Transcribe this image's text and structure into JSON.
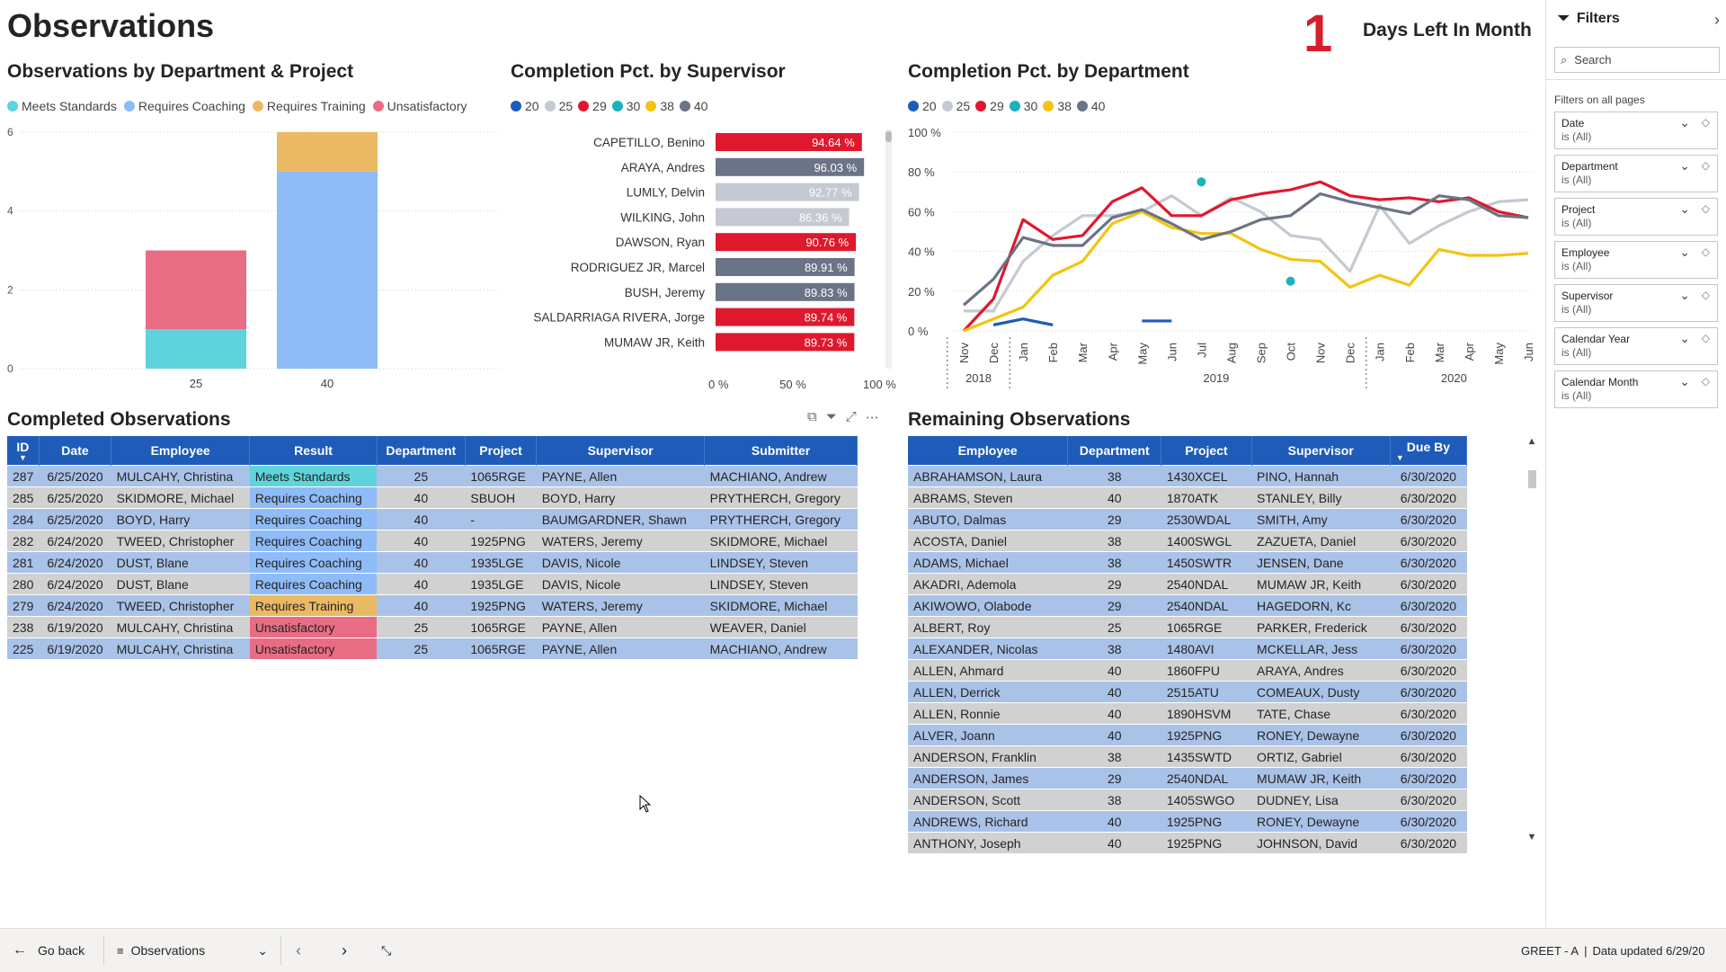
{
  "page_title": "Observations",
  "days_left": {
    "number": "1",
    "label": "Days Left In Month"
  },
  "obs_chart": {
    "title": "Observations by Department & Project",
    "legend": [
      {
        "label": "Meets Standards",
        "color": "#5fd3dc"
      },
      {
        "label": "Requires Coaching",
        "color": "#8fbcf8"
      },
      {
        "label": "Requires Training",
        "color": "#ebb864"
      },
      {
        "label": "Unsatisfactory",
        "color": "#e96c85"
      }
    ]
  },
  "sup_chart": {
    "title": "Completion Pct. by Supervisor",
    "legend": [
      {
        "label": "20",
        "color": "#1f5bb8"
      },
      {
        "label": "25",
        "color": "#c4c9d2"
      },
      {
        "label": "29",
        "color": "#e0182d"
      },
      {
        "label": "30",
        "color": "#19b2bd"
      },
      {
        "label": "38",
        "color": "#f2c413"
      },
      {
        "label": "40",
        "color": "#6b7386"
      }
    ]
  },
  "dept_chart": {
    "title": "Completion Pct. by Department",
    "legend": [
      {
        "label": "20",
        "color": "#1f5bb8"
      },
      {
        "label": "25",
        "color": "#c4c9d2"
      },
      {
        "label": "29",
        "color": "#e0182d"
      },
      {
        "label": "30",
        "color": "#19b2bd"
      },
      {
        "label": "38",
        "color": "#f2c413"
      },
      {
        "label": "40",
        "color": "#6b7386"
      }
    ]
  },
  "chart_data": [
    {
      "type": "bar",
      "stacked": true,
      "categories": [
        "25",
        "40"
      ],
      "series": [
        {
          "name": "Meets Standards",
          "values": [
            1,
            0
          ]
        },
        {
          "name": "Requires Coaching",
          "values": [
            0,
            5
          ]
        },
        {
          "name": "Requires Training",
          "values": [
            0,
            1
          ]
        },
        {
          "name": "Unsatisfactory",
          "values": [
            2,
            0
          ]
        }
      ],
      "ylim": [
        0,
        6
      ],
      "yticks": [
        "0",
        "2",
        "4",
        "6"
      ],
      "grid": true
    },
    {
      "type": "bar",
      "orientation": "horizontal",
      "categories": [
        "CAPETILLO, Benino",
        "ARAYA, Andres",
        "LUMLY, Delvin",
        "WILKING, John",
        "DAWSON, Ryan",
        "RODRIGUEZ JR, Marcel",
        "BUSH, Jeremy",
        "SALDARRIAGA RIVERA, Jorge",
        "MUMAW JR, Keith"
      ],
      "values": [
        94.64,
        96.03,
        92.77,
        86.36,
        90.76,
        89.91,
        89.83,
        89.74,
        89.73
      ],
      "value_labels": [
        "94.64 %",
        "96.03 %",
        "92.77 %",
        "86.36 %",
        "90.76 %",
        "89.91 %",
        "89.83 %",
        "89.74 %",
        "89.73 %"
      ],
      "department_colors": [
        "#e0182d",
        "#6b7386",
        "#c4c9d2",
        "#c4c9d2",
        "#e0182d",
        "#6b7386",
        "#6b7386",
        "#e0182d",
        "#e0182d"
      ],
      "xlim": [
        0,
        100
      ],
      "xticks": [
        "0 %",
        "50 %",
        "100 %"
      ]
    },
    {
      "type": "line",
      "x": [
        "Nov 2018",
        "Dec 2018",
        "Jan 2019",
        "Feb 2019",
        "Mar 2019",
        "Apr 2019",
        "May 2019",
        "Jun 2019",
        "Jul 2019",
        "Aug 2019",
        "Sep 2019",
        "Oct 2019",
        "Nov 2019",
        "Dec 2019",
        "Jan 2020",
        "Feb 2020",
        "Mar 2020",
        "Apr 2020",
        "May 2020",
        "Jun 2020"
      ],
      "x_tick_labels": [
        "Nov",
        "Dec",
        "Jan",
        "Feb",
        "Mar",
        "Apr",
        "May",
        "Jun",
        "Jul",
        "Aug",
        "Sep",
        "Oct",
        "Nov",
        "Dec",
        "Jan",
        "Feb",
        "Mar",
        "Apr",
        "May",
        "Jun"
      ],
      "x_year_labels": [
        "2018",
        "2019",
        "2020"
      ],
      "series": [
        {
          "name": "20",
          "values": [
            null,
            3,
            6,
            3,
            null,
            null,
            5,
            5,
            null,
            null,
            null,
            null,
            null,
            null,
            null,
            null,
            null,
            null,
            null,
            null
          ]
        },
        {
          "name": "25",
          "values": [
            10,
            10,
            35,
            48,
            58,
            58,
            60,
            68,
            58,
            67,
            60,
            48,
            46,
            30,
            63,
            44,
            53,
            60,
            65,
            66
          ]
        },
        {
          "name": "29",
          "values": [
            0,
            16,
            56,
            46,
            48,
            65,
            72,
            58,
            58,
            66,
            69,
            71,
            75,
            68,
            66,
            67,
            65,
            67,
            60,
            57
          ]
        },
        {
          "name": "30",
          "values": [
            null,
            null,
            null,
            null,
            null,
            null,
            null,
            null,
            75,
            null,
            null,
            25,
            null,
            null,
            null,
            null,
            null,
            null,
            null,
            null
          ]
        },
        {
          "name": "38",
          "values": [
            0,
            6,
            12,
            28,
            35,
            54,
            60,
            52,
            49,
            49,
            41,
            36,
            35,
            22,
            28,
            23,
            41,
            38,
            38,
            39
          ]
        },
        {
          "name": "40",
          "values": [
            13,
            26,
            47,
            43,
            43,
            57,
            61,
            54,
            46,
            50,
            56,
            58,
            69,
            65,
            62,
            59,
            68,
            66,
            58,
            57
          ]
        }
      ],
      "ylim": [
        0,
        100
      ],
      "yticks": [
        "0 %",
        "20 %",
        "40 %",
        "60 %",
        "80 %",
        "100 %"
      ],
      "grid": true
    }
  ],
  "completed": {
    "title": "Completed Observations",
    "columns": [
      "ID",
      "Date",
      "Employee",
      "Result",
      "Department",
      "Project",
      "Supervisor",
      "Submitter"
    ],
    "rows": [
      [
        "287",
        "6/25/2020",
        "MULCAHY, Christina",
        "Meets Standards",
        "25",
        "1065RGE",
        "PAYNE, Allen",
        "MACHIANO, Andrew"
      ],
      [
        "285",
        "6/25/2020",
        "SKIDMORE, Michael",
        "Requires Coaching",
        "40",
        "SBUOH",
        "BOYD, Harry",
        "PRYTHERCH, Gregory"
      ],
      [
        "284",
        "6/25/2020",
        "BOYD, Harry",
        "Requires Coaching",
        "40",
        "-",
        "BAUMGARDNER, Shawn",
        "PRYTHERCH, Gregory"
      ],
      [
        "282",
        "6/24/2020",
        "TWEED, Christopher",
        "Requires Coaching",
        "40",
        "1925PNG",
        "WATERS, Jeremy",
        "SKIDMORE, Michael"
      ],
      [
        "281",
        "6/24/2020",
        "DUST, Blane",
        "Requires Coaching",
        "40",
        "1935LGE",
        "DAVIS, Nicole",
        "LINDSEY, Steven"
      ],
      [
        "280",
        "6/24/2020",
        "DUST, Blane",
        "Requires Coaching",
        "40",
        "1935LGE",
        "DAVIS, Nicole",
        "LINDSEY, Steven"
      ],
      [
        "279",
        "6/24/2020",
        "TWEED, Christopher",
        "Requires Training",
        "40",
        "1925PNG",
        "WATERS, Jeremy",
        "SKIDMORE, Michael"
      ],
      [
        "238",
        "6/19/2020",
        "MULCAHY, Christina",
        "Unsatisfactory",
        "25",
        "1065RGE",
        "PAYNE, Allen",
        "WEAVER, Daniel"
      ],
      [
        "225",
        "6/19/2020",
        "MULCAHY, Christina",
        "Unsatisfactory",
        "25",
        "1065RGE",
        "PAYNE, Allen",
        "MACHIANO, Andrew"
      ]
    ],
    "result_colors": {
      "Meets Standards": "#5fd3dc",
      "Requires Coaching": "#8fbcf8",
      "Requires Training": "#ebb864",
      "Unsatisfactory": "#e96c85"
    },
    "toolbar_icons": [
      "copy-icon",
      "filter-icon",
      "focus-mode-icon",
      "more-options-icon"
    ]
  },
  "remaining": {
    "title": "Remaining Observations",
    "columns": [
      "Employee",
      "Department",
      "Project",
      "Supervisor",
      "Due By"
    ],
    "rows": [
      [
        "ABRAHAMSON, Laura",
        "38",
        "1430XCEL",
        "PINO, Hannah",
        "6/30/2020"
      ],
      [
        "ABRAMS, Steven",
        "40",
        "1870ATK",
        "STANLEY, Billy",
        "6/30/2020"
      ],
      [
        "ABUTO, Dalmas",
        "29",
        "2530WDAL",
        "SMITH, Amy",
        "6/30/2020"
      ],
      [
        "ACOSTA, Daniel",
        "38",
        "1400SWGL",
        "ZAZUETA, Daniel",
        "6/30/2020"
      ],
      [
        "ADAMS, Michael",
        "38",
        "1450SWTR",
        "JENSEN, Dane",
        "6/30/2020"
      ],
      [
        "AKADRI, Ademola",
        "29",
        "2540NDAL",
        "MUMAW JR, Keith",
        "6/30/2020"
      ],
      [
        "AKIWOWO, Olabode",
        "29",
        "2540NDAL",
        "HAGEDORN, Kc",
        "6/30/2020"
      ],
      [
        "ALBERT, Roy",
        "25",
        "1065RGE",
        "PARKER, Frederick",
        "6/30/2020"
      ],
      [
        "ALEXANDER, Nicolas",
        "38",
        "1480AVI",
        "MCKELLAR, Jess",
        "6/30/2020"
      ],
      [
        "ALLEN, Ahmard",
        "40",
        "1860FPU",
        "ARAYA, Andres",
        "6/30/2020"
      ],
      [
        "ALLEN, Derrick",
        "40",
        "2515ATU",
        "COMEAUX, Dusty",
        "6/30/2020"
      ],
      [
        "ALLEN, Ronnie",
        "40",
        "1890HSVM",
        "TATE, Chase",
        "6/30/2020"
      ],
      [
        "ALVER, Joann",
        "40",
        "1925PNG",
        "RONEY, Dewayne",
        "6/30/2020"
      ],
      [
        "ANDERSON, Franklin",
        "38",
        "1435SWTD",
        "ORTIZ, Gabriel",
        "6/30/2020"
      ],
      [
        "ANDERSON, James",
        "29",
        "2540NDAL",
        "MUMAW JR, Keith",
        "6/30/2020"
      ],
      [
        "ANDERSON, Scott",
        "38",
        "1405SWGO",
        "DUDNEY, Lisa",
        "6/30/2020"
      ],
      [
        "ANDREWS, Richard",
        "40",
        "1925PNG",
        "RONEY, Dewayne",
        "6/30/2020"
      ],
      [
        "ANTHONY, Joseph",
        "40",
        "1925PNG",
        "JOHNSON, David",
        "6/30/2020"
      ]
    ]
  },
  "filters": {
    "title": "Filters",
    "search_placeholder": "Search",
    "section_label": "Filters on all pages",
    "items": [
      {
        "name": "Date",
        "value": "is (All)"
      },
      {
        "name": "Department",
        "value": "is (All)"
      },
      {
        "name": "Project",
        "value": "is (All)"
      },
      {
        "name": "Employee",
        "value": "is (All)"
      },
      {
        "name": "Supervisor",
        "value": "is (All)"
      },
      {
        "name": "Calendar Year",
        "value": "is (All)"
      },
      {
        "name": "Calendar Month",
        "value": "is (All)"
      }
    ]
  },
  "bottom_bar": {
    "go_back": "Go back",
    "page_name": "Observations",
    "workspace": "GREET - A",
    "data_updated": "Data updated 6/29/20"
  }
}
